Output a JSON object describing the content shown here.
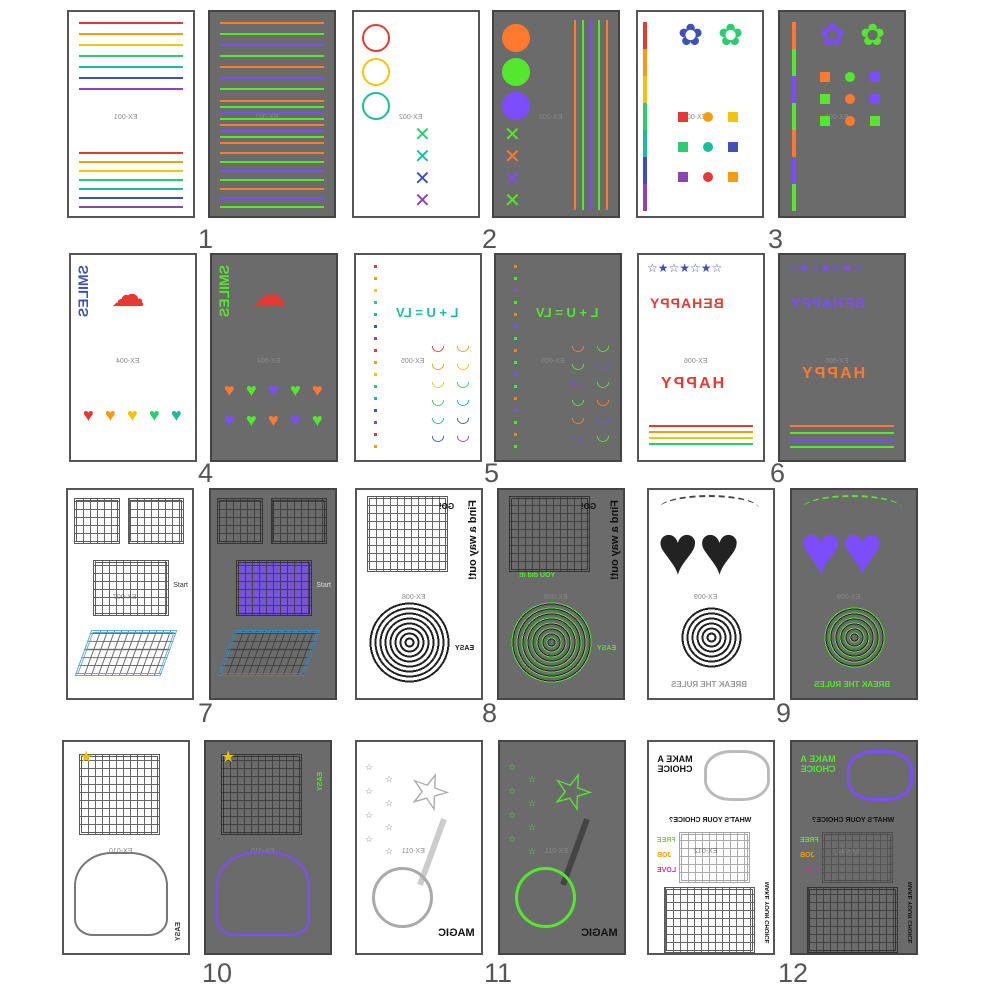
{
  "items": [
    {
      "number": "1",
      "label": "EX-001"
    },
    {
      "number": "2",
      "label": "EX-002"
    },
    {
      "number": "3",
      "label": "EX-003"
    },
    {
      "number": "4",
      "label": "EX-004",
      "text": "SMILES"
    },
    {
      "number": "5",
      "label": "EX-005",
      "text": "L + U = LV"
    },
    {
      "number": "6",
      "label": "EX-006",
      "text": "BEHAPPY",
      "text2": "HAPPY"
    },
    {
      "number": "7",
      "label": "EX-007",
      "text": "Start"
    },
    {
      "number": "8",
      "label": "EX-008",
      "text": "Find a way out!",
      "text2": "GO!",
      "text3": "EASY",
      "text4": "YOU did it!"
    },
    {
      "number": "9",
      "label": "EX-009",
      "text": "BREAK THE RULES"
    },
    {
      "number": "10",
      "label": "EX-010",
      "text": "EASY"
    },
    {
      "number": "11",
      "label": "EX-011",
      "text": "MAGIC"
    },
    {
      "number": "12",
      "label": "EX-012",
      "text": "MAKE A CHOICE",
      "text2": "WHAT'S YOUR CHOICE?",
      "text3": "FREE",
      "text4": "JOB",
      "text5": "LOVE",
      "text6": "MAKE YOUR CHOICE"
    }
  ],
  "colors": {
    "rainbow": [
      "#e53935",
      "#f39c12",
      "#f1c40f",
      "#2ecc71",
      "#1abc9c",
      "#3f51b5",
      "#8e44ad"
    ],
    "neon_green": "#55e630",
    "neon_purple": "#7b4dff",
    "neon_orange": "#ff7a2e"
  }
}
